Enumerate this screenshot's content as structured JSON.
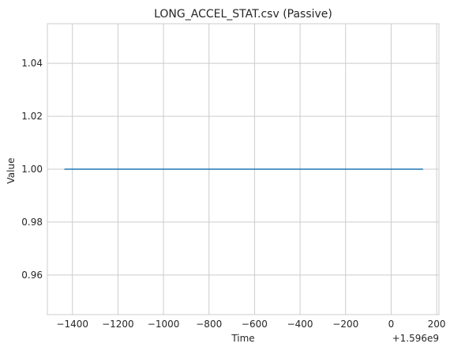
{
  "chart_data": {
    "type": "line",
    "title": "LONG_ACCEL_STAT.csv (Passive)",
    "xlabel": "Time",
    "ylabel": "Value",
    "x_offset_label": "+1.596e9",
    "xlim": [
      -1510,
      210
    ],
    "ylim": [
      0.945,
      1.055
    ],
    "x_ticks": [
      -1400,
      -1200,
      -1000,
      -800,
      -600,
      -400,
      -200,
      0,
      200
    ],
    "x_tick_labels": [
      "−1400",
      "−1200",
      "−1000",
      "−800",
      "−600",
      "−400",
      "−200",
      "0",
      "200"
    ],
    "y_ticks": [
      0.96,
      0.98,
      1.0,
      1.02,
      1.04
    ],
    "y_tick_labels": [
      "0.96",
      "0.98",
      "1.00",
      "1.02",
      "1.04"
    ],
    "grid": true,
    "series": [
      {
        "color": "#1f77b4",
        "x": [
          -1435,
          140
        ],
        "y": [
          1.0,
          1.0
        ]
      }
    ]
  }
}
